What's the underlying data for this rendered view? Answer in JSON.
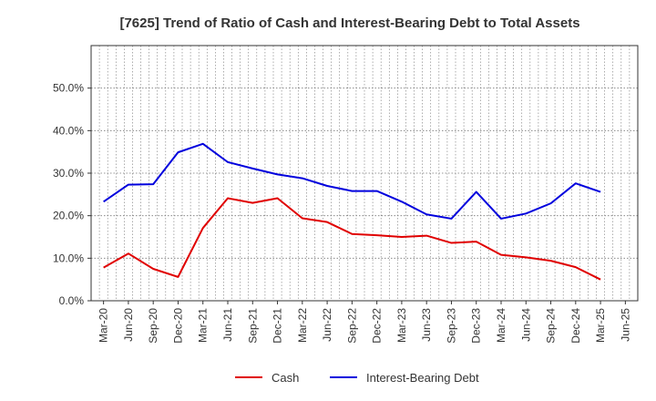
{
  "chart_data": {
    "type": "line",
    "title": "[7625]  Trend of Ratio of Cash and Interest-Bearing Debt to Total Assets",
    "xlabel": "",
    "ylabel": "",
    "ylim": [
      0,
      0.6
    ],
    "yticks": [
      "0.0%",
      "10.0%",
      "20.0%",
      "30.0%",
      "40.0%",
      "50.0%"
    ],
    "ytick_values": [
      0,
      0.1,
      0.2,
      0.3,
      0.4,
      0.5
    ],
    "grid": true,
    "legend_position": "bottom",
    "categories": [
      "Mar-20",
      "Jun-20",
      "Sep-20",
      "Dec-20",
      "Mar-21",
      "Jun-21",
      "Sep-21",
      "Dec-21",
      "Mar-22",
      "Jun-22",
      "Sep-22",
      "Dec-22",
      "Mar-23",
      "Jun-23",
      "Sep-23",
      "Dec-23",
      "Mar-24",
      "Jun-24",
      "Sep-24",
      "Dec-24",
      "Mar-25",
      "Jun-25"
    ],
    "series": [
      {
        "name": "Cash",
        "color": "#e00000",
        "values": [
          0.078,
          0.111,
          0.075,
          0.056,
          0.171,
          0.241,
          0.23,
          0.241,
          0.194,
          0.185,
          0.157,
          0.154,
          0.15,
          0.153,
          0.136,
          0.139,
          0.108,
          0.102,
          0.094,
          0.079,
          0.05,
          null
        ]
      },
      {
        "name": "Interest-Bearing Debt",
        "color": "#0000dd",
        "values": [
          0.233,
          0.273,
          0.274,
          0.349,
          0.369,
          0.326,
          0.311,
          0.297,
          0.288,
          0.27,
          0.258,
          0.258,
          0.233,
          0.203,
          0.193,
          0.256,
          0.193,
          0.205,
          0.229,
          0.276,
          0.256,
          null
        ]
      }
    ]
  }
}
